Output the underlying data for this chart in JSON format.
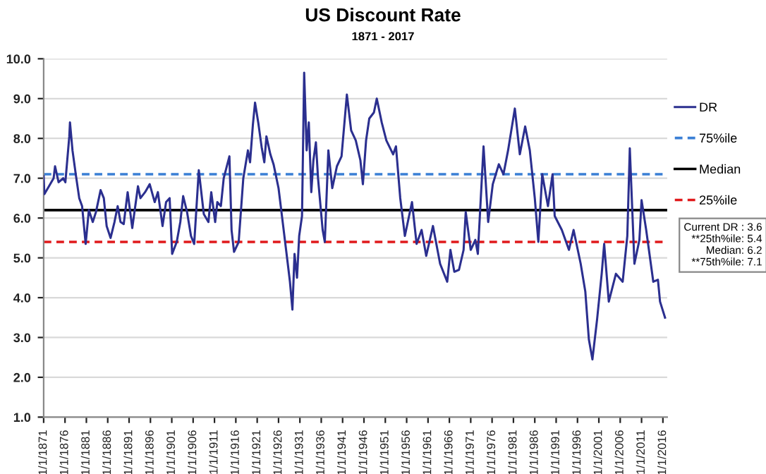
{
  "chart_data": {
    "type": "line",
    "title": "US Discount Rate",
    "subtitle": "1871 - 2017",
    "x": [
      "1871-01",
      "1871-03",
      "1872-04",
      "1873-05",
      "1873-09",
      "1874-07",
      "1875-08",
      "1876-02",
      "1877-01",
      "1877-03",
      "1877-10",
      "1878-08",
      "1879-05",
      "1880-01",
      "1880-11",
      "1881-08",
      "1882-07",
      "1883-04",
      "1884-05",
      "1885-02",
      "1885-10",
      "1886-09",
      "1887-08",
      "1888-05",
      "1889-01",
      "1889-10",
      "1890-09",
      "1891-10",
      "1893-02",
      "1893-09",
      "1894-10",
      "1895-11",
      "1897-01",
      "1897-10",
      "1898-11",
      "1899-09",
      "1900-07",
      "1901-02",
      "1902-03",
      "1903-01",
      "1903-09",
      "1904-08",
      "1905-07",
      "1906-04",
      "1907-05",
      "1908-07",
      "1909-08",
      "1910-04",
      "1911-03",
      "1911-09",
      "1912-07",
      "1913-03",
      "1914-07",
      "1915-01",
      "1915-08",
      "1916-09",
      "1917-10",
      "1918-11",
      "1919-05",
      "1920-01",
      "1920-07",
      "1921-04",
      "1922-02",
      "1922-09",
      "1923-03",
      "1924-02",
      "1924-11",
      "1926-01",
      "1927-02",
      "1928-03",
      "1928-09",
      "1929-04",
      "1929-10",
      "1930-05",
      "1930-11",
      "1931-07",
      "1932-01",
      "1932-08",
      "1933-02",
      "1933-09",
      "1934-03",
      "1934-10",
      "1935-04",
      "1936-05",
      "1936-11",
      "1937-09",
      "1938-08",
      "1939-09",
      "1940-10",
      "1942-01",
      "1943-01",
      "1944-02",
      "1945-03",
      "1945-10",
      "1946-07",
      "1947-04",
      "1948-05",
      "1949-01",
      "1950-03",
      "1951-04",
      "1952-11",
      "1953-07",
      "1954-07",
      "1955-08",
      "1957-04",
      "1958-05",
      "1959-07",
      "1960-08",
      "1962-03",
      "1963-11",
      "1965-07",
      "1966-04",
      "1967-03",
      "1968-04",
      "1969-05",
      "1969-11",
      "1971-01",
      "1972-02",
      "1972-09",
      "1974-01",
      "1975-02",
      "1976-03",
      "1977-08",
      "1978-09",
      "1979-10",
      "1981-05",
      "1982-07",
      "1983-10",
      "1984-11",
      "1986-01",
      "1986-11",
      "1987-10",
      "1989-02",
      "1990-03",
      "1990-09",
      "1992-05",
      "1994-01",
      "1995-02",
      "1996-10",
      "1997-11",
      "1998-09",
      "1999-07",
      "2000-08",
      "2001-09",
      "2002-04",
      "2003-05",
      "2005-01",
      "2006-08",
      "2007-09",
      "2008-04",
      "2009-05",
      "2010-07",
      "2011-01",
      "2012-02",
      "2013-10",
      "2014-11",
      "2015-05",
      "2016-07"
    ],
    "series": [
      {
        "name": "DR",
        "color": "#2b2f8f",
        "values": [
          7.05,
          6.6,
          6.8,
          7.0,
          7.3,
          6.9,
          7.0,
          6.9,
          8.05,
          8.4,
          7.7,
          7.05,
          6.5,
          6.3,
          5.35,
          6.2,
          5.9,
          6.15,
          6.7,
          6.5,
          5.8,
          5.5,
          5.9,
          6.3,
          5.9,
          5.85,
          6.65,
          5.75,
          6.8,
          6.5,
          6.65,
          6.85,
          6.4,
          6.65,
          5.8,
          6.4,
          6.5,
          5.1,
          5.4,
          5.9,
          6.55,
          6.15,
          5.55,
          5.35,
          7.2,
          6.1,
          5.9,
          6.65,
          5.9,
          6.4,
          6.3,
          7.0,
          7.55,
          5.7,
          5.15,
          5.4,
          7.0,
          7.7,
          7.4,
          8.35,
          8.9,
          8.4,
          7.75,
          7.4,
          8.05,
          7.6,
          7.35,
          6.75,
          5.8,
          4.85,
          4.4,
          3.7,
          5.1,
          4.5,
          5.55,
          6.05,
          9.65,
          7.7,
          8.4,
          6.65,
          7.45,
          7.9,
          7.0,
          5.7,
          5.4,
          7.7,
          6.75,
          7.3,
          7.55,
          9.1,
          8.2,
          7.95,
          7.45,
          6.85,
          7.95,
          8.5,
          8.65,
          9.0,
          8.4,
          7.95,
          7.6,
          7.8,
          6.5,
          5.55,
          6.4,
          5.35,
          5.7,
          5.05,
          5.8,
          4.85,
          4.4,
          5.2,
          4.65,
          4.7,
          5.2,
          6.15,
          5.2,
          5.45,
          5.1,
          7.8,
          5.9,
          6.85,
          7.35,
          7.1,
          7.7,
          8.75,
          7.6,
          8.3,
          7.7,
          6.5,
          5.4,
          7.1,
          6.3,
          7.1,
          6.05,
          5.7,
          5.2,
          5.7,
          4.85,
          4.15,
          2.95,
          2.45,
          3.45,
          4.6,
          5.35,
          3.9,
          4.6,
          4.4,
          5.55,
          7.75,
          4.85,
          5.45,
          6.45,
          5.7,
          4.4,
          4.45,
          3.9,
          3.5
        ]
      }
    ],
    "ref_lines": [
      {
        "axis": "y",
        "value": 7.1,
        "label": "75%ile",
        "color": "#3a7fd5",
        "line_style": "dashed"
      },
      {
        "axis": "y",
        "value": 6.2,
        "label": "Median",
        "color": "#000000",
        "line_style": "solid"
      },
      {
        "axis": "y",
        "value": 5.4,
        "label": "25%ile",
        "color": "#e0191b",
        "line_style": "dashed"
      }
    ],
    "annotations": [
      "Current DR : 3.6\n**25th%ile: 5.4\nMedian: 6.2\n**75th%ile: 7.1"
    ],
    "xlim": [
      "1871-01-01",
      "2017-01-01"
    ],
    "xticks": [
      {
        "value": "1871-01-01",
        "label": "1/1/1871"
      },
      {
        "value": "1876-01-01",
        "label": "1/1/1876"
      },
      {
        "value": "1881-01-01",
        "label": "1/1/1881"
      },
      {
        "value": "1886-01-01",
        "label": "1/1/1886"
      },
      {
        "value": "1891-01-01",
        "label": "1/1/1891"
      },
      {
        "value": "1896-01-01",
        "label": "1/1/1896"
      },
      {
        "value": "1901-01-01",
        "label": "1/1/1901"
      },
      {
        "value": "1906-01-01",
        "label": "1/1/1906"
      },
      {
        "value": "1911-01-01",
        "label": "1/1/1911"
      },
      {
        "value": "1916-01-01",
        "label": "1/1/1916"
      },
      {
        "value": "1921-01-01",
        "label": "1/1/1921"
      },
      {
        "value": "1926-01-01",
        "label": "1/1/1926"
      },
      {
        "value": "1931-01-01",
        "label": "1/1/1931"
      },
      {
        "value": "1936-01-01",
        "label": "1/1/1936"
      },
      {
        "value": "1941-01-01",
        "label": "1/1/1941"
      },
      {
        "value": "1946-01-01",
        "label": "1/1/1946"
      },
      {
        "value": "1951-01-01",
        "label": "1/1/1951"
      },
      {
        "value": "1956-01-01",
        "label": "1/1/1956"
      },
      {
        "value": "1961-01-01",
        "label": "1/1/1961"
      },
      {
        "value": "1966-01-01",
        "label": "1/1/1966"
      },
      {
        "value": "1971-01-01",
        "label": "1/1/1971"
      },
      {
        "value": "1976-01-01",
        "label": "1/1/1976"
      },
      {
        "value": "1981-01-01",
        "label": "1/1/1981"
      },
      {
        "value": "1986-01-01",
        "label": "1/1/1986"
      },
      {
        "value": "1991-01-01",
        "label": "1/1/1991"
      },
      {
        "value": "1996-01-01",
        "label": "1/1/1996"
      },
      {
        "value": "2001-01-01",
        "label": "1/1/2001"
      },
      {
        "value": "2006-01-01",
        "label": "1/1/2006"
      },
      {
        "value": "2011-01-01",
        "label": "1/1/2011"
      },
      {
        "value": "2016-01-01",
        "label": "1/1/2016"
      }
    ],
    "ylim": [
      1.0,
      10.0
    ],
    "yticks": [
      {
        "value": 1,
        "label": "1.0"
      },
      {
        "value": 2,
        "label": "2.0"
      },
      {
        "value": 3,
        "label": "3.0"
      },
      {
        "value": 4,
        "label": "4.0"
      },
      {
        "value": 5,
        "label": "5.0"
      },
      {
        "value": 6,
        "label": "6.0"
      },
      {
        "value": 7,
        "label": "7.0"
      },
      {
        "value": 8,
        "label": "8.0"
      },
      {
        "value": 9,
        "label": "9.0"
      },
      {
        "value": 10,
        "label": "10.0"
      }
    ],
    "grid": "y",
    "legend": "right",
    "marker": "none",
    "line_style": "solid"
  }
}
